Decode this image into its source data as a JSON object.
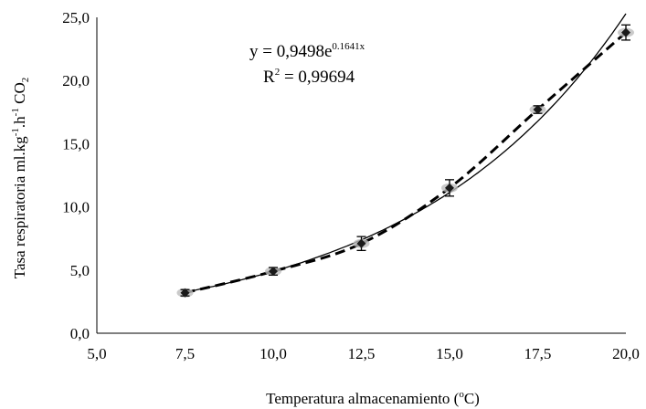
{
  "chart_data": {
    "type": "scatter",
    "xlabel": {
      "main": "Temperatura almacenamiento (",
      "sup": "o",
      "end": "C)"
    },
    "ylabel": {
      "t1": "Tasa respiratoria ml.kg",
      "s1": "-1",
      "t2": ".h",
      "s2": "-1",
      "t3": " CO",
      "sub": "2"
    },
    "xlim": [
      5.0,
      20.0
    ],
    "ylim": [
      0.0,
      25.0
    ],
    "x_ticks": [
      "5,0",
      "7,5",
      "10,0",
      "12,5",
      "15,0",
      "17,5",
      "20,0"
    ],
    "y_ticks": [
      "0,0",
      "5,0",
      "10,0",
      "15,0",
      "20,0",
      "25,0"
    ],
    "grid": false,
    "points": [
      {
        "x": 7.5,
        "y": 3.2,
        "err": 0.25
      },
      {
        "x": 10.0,
        "y": 4.9,
        "err": 0.3
      },
      {
        "x": 12.5,
        "y": 7.1,
        "err": 0.55
      },
      {
        "x": 15.0,
        "y": 11.5,
        "err": 0.65
      },
      {
        "x": 17.5,
        "y": 17.7,
        "err": 0.3
      },
      {
        "x": 20.0,
        "y": 23.8,
        "err": 0.6
      }
    ],
    "trendline": {
      "type": "exponential",
      "a": 0.9498,
      "b": 0.1641,
      "equation": {
        "base": "y = 0,9498e",
        "exp": "0.1641x"
      },
      "r2": {
        "r": "R",
        "two": "2",
        "value": " = 0,99694"
      }
    },
    "marker_color": "#1a1a1a",
    "line_color": "#000000"
  }
}
